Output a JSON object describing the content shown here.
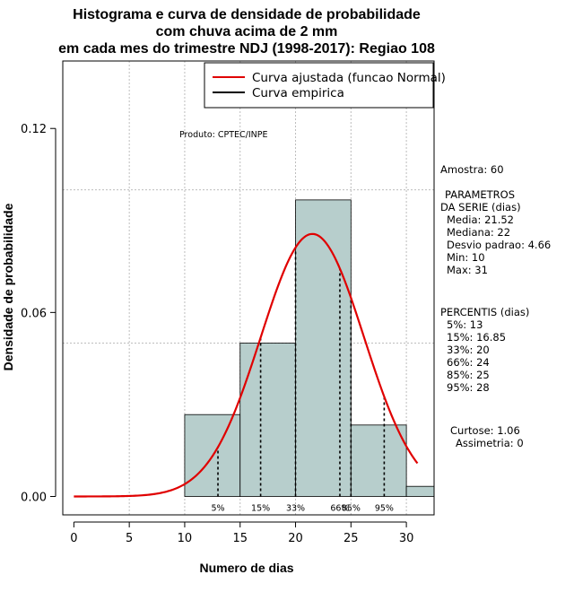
{
  "chart_data": {
    "type": "bar",
    "title_lines": [
      "Histograma e curva de densidade de probabilidade",
      "com chuva acima de 2 mm",
      "em cada mes do trimestre NDJ (1998-2017): Regiao 108"
    ],
    "xlabel": "Numero de dias",
    "ylabel": "Densidade de probabilidade",
    "xlim": [
      -1,
      32.5
    ],
    "ylim": [
      -0.006,
      0.142
    ],
    "x_ticks": [
      0,
      5,
      10,
      15,
      20,
      25,
      30
    ],
    "y_ticks": [
      0.0,
      0.06,
      0.12
    ],
    "y_tick_labels": [
      "0.00",
      "0.06",
      "0.12"
    ],
    "y_gridlines": [
      0.05,
      0.1
    ],
    "x_gridlines": [
      5,
      10,
      15,
      20,
      25,
      30
    ],
    "bins": [
      {
        "x0": 10,
        "x1": 15,
        "density": 0.0267
      },
      {
        "x0": 15,
        "x1": 20,
        "density": 0.05
      },
      {
        "x0": 20,
        "x1": 25,
        "density": 0.0967
      },
      {
        "x0": 25,
        "x1": 30,
        "density": 0.0233
      },
      {
        "x0": 30,
        "x1": 35,
        "density": 0.0033
      }
    ],
    "normal_curve": {
      "mean": 21.52,
      "sd": 4.66,
      "x_start": 0,
      "x_end": 31
    },
    "percentile_markers": [
      {
        "label": "5%",
        "x": 13
      },
      {
        "label": "15%",
        "x": 16.85
      },
      {
        "label": "33%",
        "x": 20
      },
      {
        "label": "66%",
        "x": 24
      },
      {
        "label": "85%",
        "x": 25
      },
      {
        "label": "95%",
        "x": 28
      }
    ],
    "legend": [
      {
        "label": "Curva ajustada (funcao Normal)",
        "color": "#e00000"
      },
      {
        "label": "Curva empirica",
        "color": "#000000"
      }
    ],
    "annotation": "Produto: CPTEC/INPE",
    "colors": {
      "bar_fill": "#b7cecc",
      "curve": "#e00000",
      "grid": "#bdbdbd"
    }
  },
  "side_panel": {
    "amostra": "Amostra: 60",
    "param_title_1": "PARAMETROS",
    "param_title_2": "DA SERIE (dias)",
    "media": "Media: 21.52",
    "mediana": "Mediana: 22",
    "desvio": "Desvio padrao: 4.66",
    "min": "Min: 10",
    "max": "Max: 31",
    "percentis_title": "PERCENTIS (dias)",
    "p5": "5%: 13",
    "p15": "15%: 16.85",
    "p33": "33%: 20",
    "p66": "66%: 24",
    "p85": "85%: 25",
    "p95": "95%: 28",
    "curtose": "Curtose: 1.06",
    "assimetria": "Assimetria: 0"
  }
}
